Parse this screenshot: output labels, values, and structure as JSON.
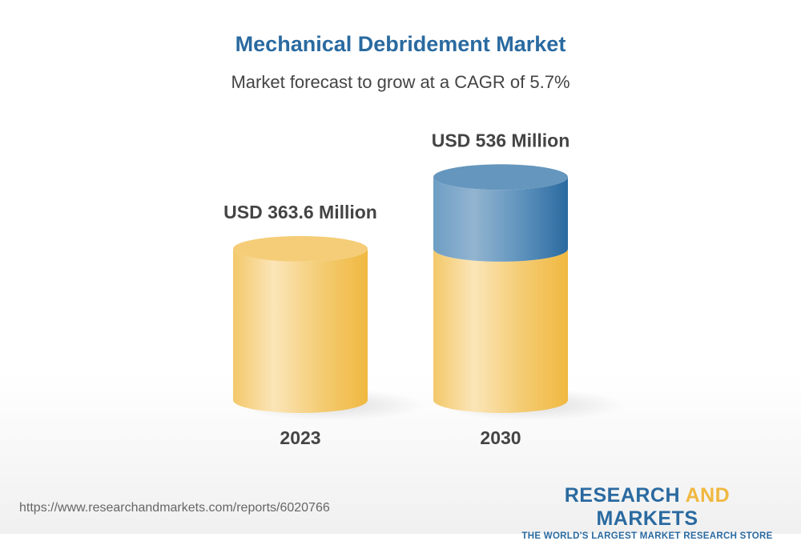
{
  "chart_data": {
    "type": "bar",
    "title": "Mechanical Debridement Market",
    "subtitle": "Market forecast to grow at a CAGR of 5.7%",
    "categories": [
      "2023",
      "2030"
    ],
    "values": [
      363.6,
      536
    ],
    "unit": "USD Million",
    "data_labels": [
      "USD 363.6 Million",
      "USD 536 Million"
    ],
    "style": "3d-cylinder",
    "colors": {
      "base": "#f2c050",
      "growth": "#2a6aa0"
    }
  },
  "footer": {
    "url": "https://www.researchandmarkets.com/reports/6020766",
    "logo_line1_a": "RESEARCH ",
    "logo_line1_b": "AND",
    "logo_line1_c": " MARKETS",
    "logo_line2": "THE WORLD'S LARGEST MARKET RESEARCH STORE"
  }
}
